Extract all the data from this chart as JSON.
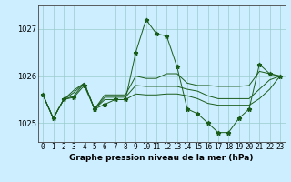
{
  "xlabel": "Graphe pression niveau de la mer (hPa)",
  "x": [
    0,
    1,
    2,
    3,
    4,
    5,
    6,
    7,
    8,
    9,
    10,
    11,
    12,
    13,
    14,
    15,
    16,
    17,
    18,
    19,
    20,
    21,
    22,
    23
  ],
  "y_main": [
    1025.6,
    1025.1,
    1025.5,
    1025.55,
    1025.8,
    1025.3,
    1025.4,
    1025.5,
    1025.5,
    1026.5,
    1027.2,
    1026.9,
    1026.85,
    1026.2,
    1025.3,
    1025.2,
    1025.0,
    1024.8,
    1024.8,
    1025.1,
    1025.3,
    1026.25,
    1026.05,
    1026.0
  ],
  "y_line2": [
    1025.6,
    1025.1,
    1025.5,
    1025.7,
    1025.85,
    1025.3,
    1025.6,
    1025.6,
    1025.6,
    1026.0,
    1025.95,
    1025.95,
    1026.05,
    1026.05,
    1025.85,
    1025.8,
    1025.8,
    1025.78,
    1025.78,
    1025.78,
    1025.8,
    1026.1,
    1026.05,
    1026.0
  ],
  "y_line3": [
    1025.6,
    1025.1,
    1025.5,
    1025.65,
    1025.85,
    1025.3,
    1025.55,
    1025.55,
    1025.55,
    1025.8,
    1025.78,
    1025.78,
    1025.78,
    1025.78,
    1025.72,
    1025.68,
    1025.58,
    1025.52,
    1025.52,
    1025.52,
    1025.52,
    1025.72,
    1025.92,
    1026.0
  ],
  "y_line4": [
    1025.6,
    1025.1,
    1025.5,
    1025.58,
    1025.85,
    1025.3,
    1025.5,
    1025.5,
    1025.5,
    1025.62,
    1025.6,
    1025.6,
    1025.62,
    1025.62,
    1025.58,
    1025.52,
    1025.42,
    1025.38,
    1025.38,
    1025.38,
    1025.38,
    1025.52,
    1025.72,
    1026.0
  ],
  "ylim": [
    1024.6,
    1027.5
  ],
  "yticks": [
    1025,
    1026,
    1027
  ],
  "color_main": "#1a5c1a",
  "color_bg": "#cceeff",
  "color_grid": "#99cccc",
  "figsize": [
    3.2,
    2.0
  ],
  "dpi": 100,
  "xlabel_fontsize": 6.5,
  "tick_fontsize": 5.5
}
